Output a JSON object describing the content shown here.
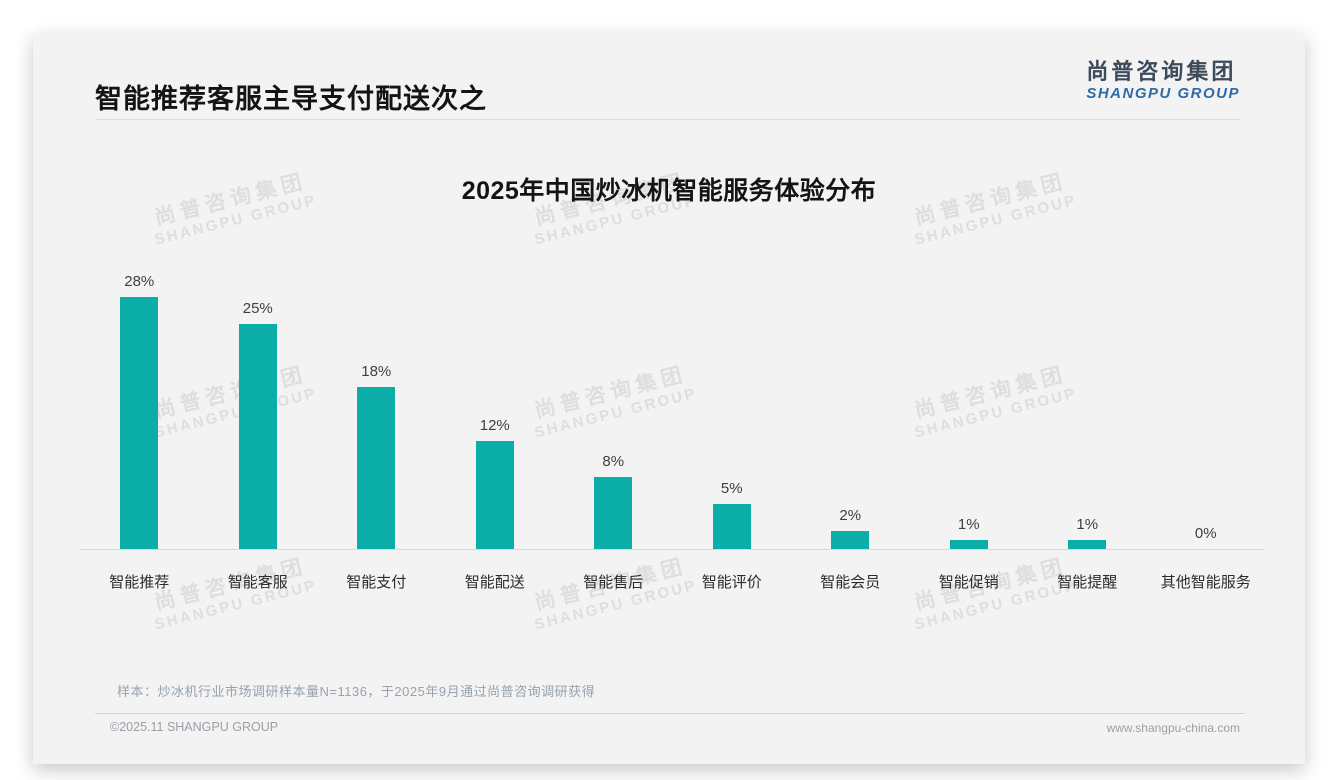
{
  "header": {
    "title": "智能推荐客服主导支付配送次之",
    "logo_zh": "尚普咨询集团",
    "logo_en": "SHANGPU GROUP"
  },
  "chart_data": {
    "type": "bar",
    "title": "2025年中国炒冰机智能服务体验分布",
    "categories": [
      "智能推荐",
      "智能客服",
      "智能支付",
      "智能配送",
      "智能售后",
      "智能评价",
      "智能会员",
      "智能促销",
      "智能提醒",
      "其他智能服务"
    ],
    "values": [
      28,
      25,
      18,
      12,
      8,
      5,
      2,
      1,
      1,
      0
    ],
    "value_labels": [
      "28%",
      "25%",
      "18%",
      "12%",
      "8%",
      "5%",
      "2%",
      "1%",
      "1%",
      "0%"
    ],
    "unit": "%",
    "xlabel": "",
    "ylabel": "",
    "ylim": [
      0,
      30
    ],
    "grid": false,
    "legend": null,
    "bar_color": "#0aaea6"
  },
  "watermark": {
    "zh": "尚普咨询集团",
    "en": "SHANGPU GROUP"
  },
  "footnote": {
    "text": "样本：炒冰机行业市场调研样本量N=1136，于2025年9月通过尚普咨询调研获得"
  },
  "footer": {
    "left": "©2025.11 SHANGPU GROUP",
    "right": "www.shangpu-china.com"
  },
  "colors": {
    "bar": "#0aaea6",
    "logo_blue": "#2e6ba6",
    "card_bg": "#f3f3f4"
  }
}
